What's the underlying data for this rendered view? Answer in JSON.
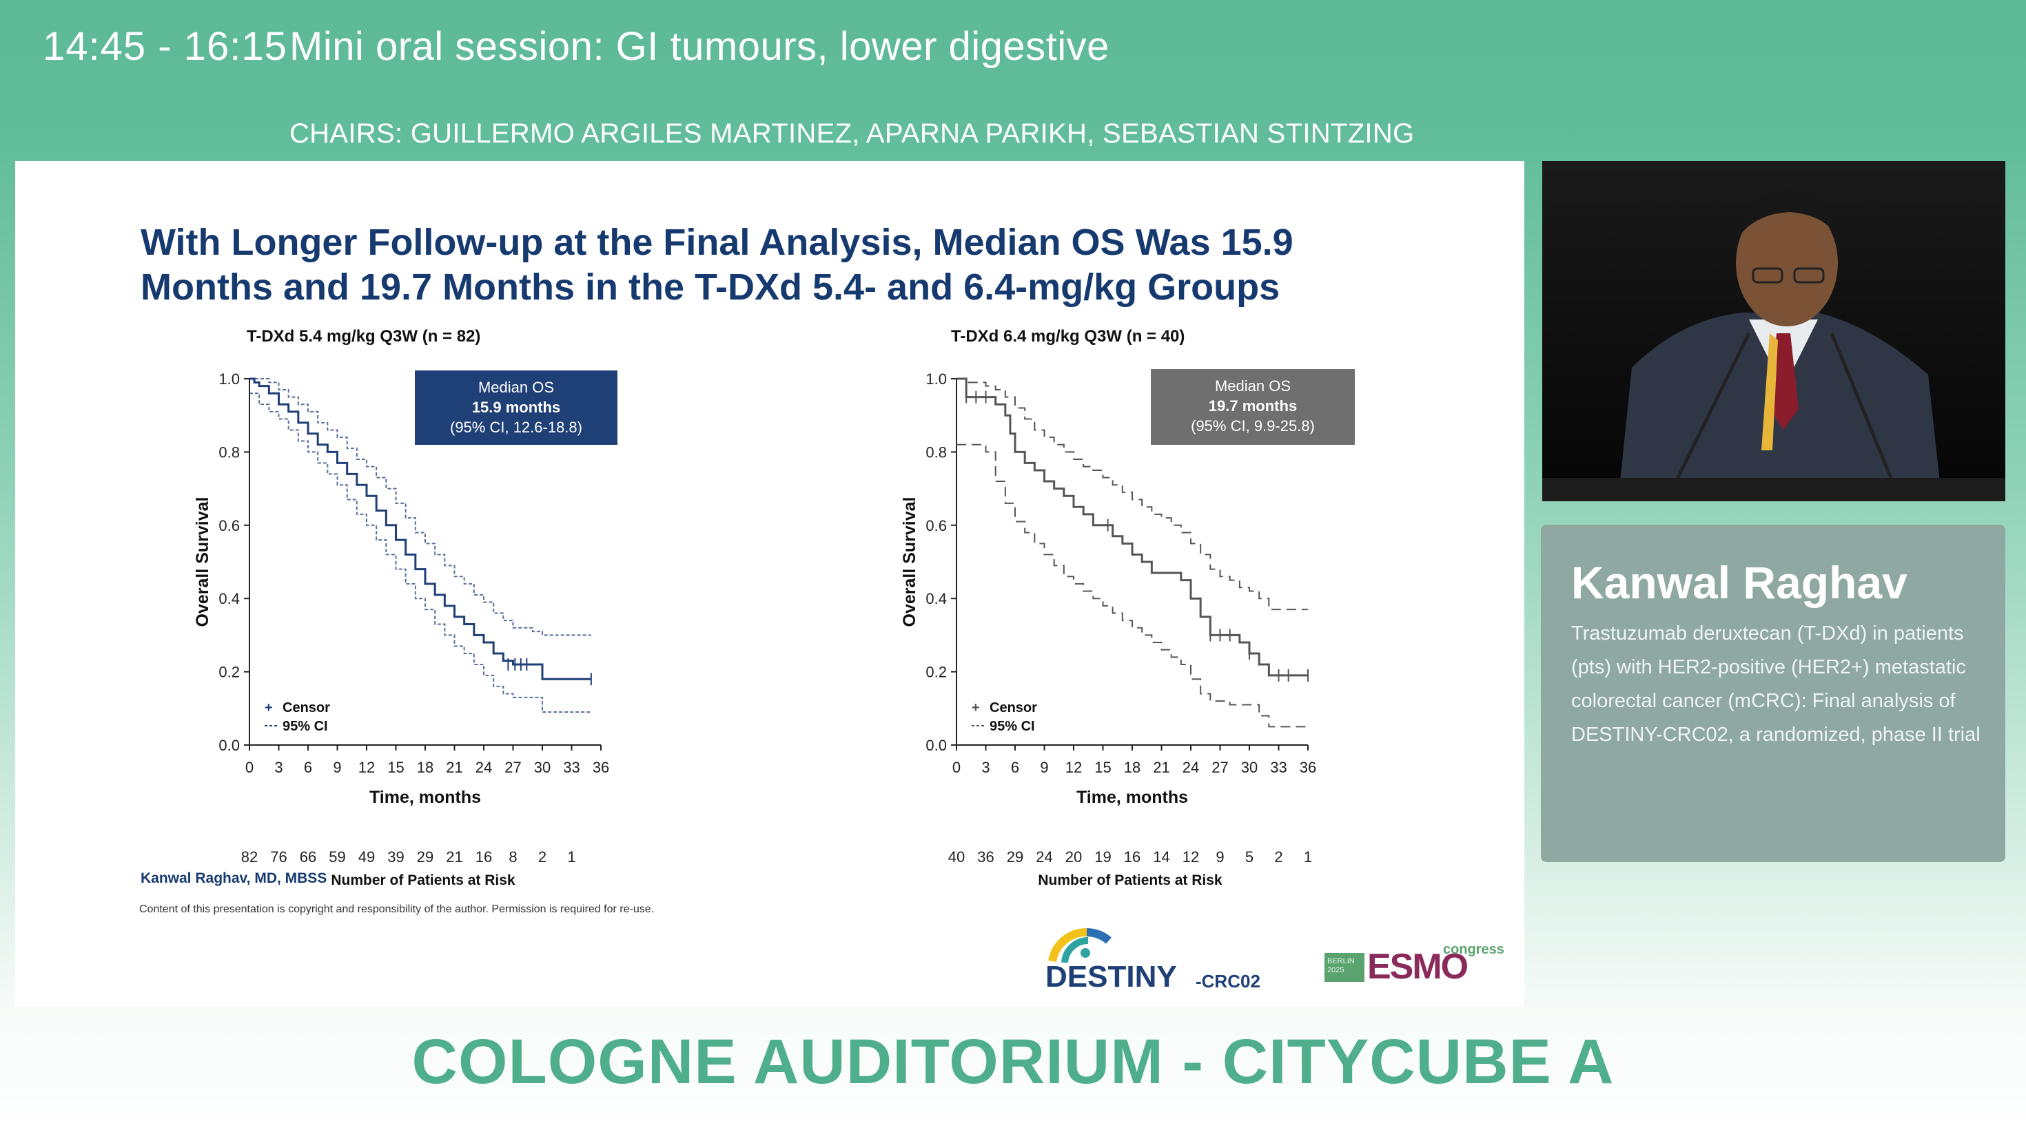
{
  "header": {
    "time": "14:45 - 16:15",
    "session_title": "Mini oral session: GI tumours, lower digestive",
    "chairs": "CHAIRS: GUILLERMO ARGILES MARTINEZ, APARNA PARIKH, SEBASTIAN STINTZING"
  },
  "slide": {
    "title_line1": "With Longer Follow-up at the Final Analysis, Median OS Was 15.9",
    "title_line2": "Months and 19.7 Months in the T-DXd 5.4- and 6.4-mg/kg Groups",
    "author": "Kanwal Raghav, MD, MBSS",
    "copyright": "Content of this presentation is copyright and responsibility of the author. Permission is required for re-use.",
    "logo_destiny_main": "DESTINY",
    "logo_destiny_sub": "-CRC02",
    "logo_esmo_badge": "BERLIN 2025",
    "logo_esmo_word": "ESMO",
    "logo_esmo_congress": "congress"
  },
  "chart_data": [
    {
      "type": "line",
      "title": "T-DXd 5.4 mg/kg Q3W (n = 82)",
      "xlabel": "Time, months",
      "ylabel": "Overall Survival",
      "xlim": [
        0,
        36
      ],
      "ylim": [
        0.0,
        1.0
      ],
      "xticks": [
        "0",
        "3",
        "6",
        "9",
        "12",
        "15",
        "18",
        "21",
        "24",
        "27",
        "30",
        "33",
        "36"
      ],
      "yticks": [
        "0.0",
        "0.2",
        "0.4",
        "0.6",
        "0.8",
        "1.0"
      ],
      "color": "#1f3f77",
      "legend": {
        "censor": "Censor",
        "ci": "95% CI"
      },
      "median_box": {
        "line1": "Median OS",
        "line2": "15.9 months",
        "line3": "(95% CI, 12.6-18.8)",
        "color": "#1f3f77"
      },
      "at_risk_label": "Number of Patients at Risk",
      "at_risk": [
        "82",
        "76",
        "66",
        "59",
        "49",
        "39",
        "29",
        "21",
        "16",
        "8",
        "2",
        "1"
      ],
      "series": [
        {
          "name": "",
          "style": "solid",
          "x": [
            0,
            0.5,
            1,
            2,
            3,
            4,
            5,
            6,
            7,
            8,
            9,
            10,
            11,
            12,
            13,
            14,
            15,
            16,
            17,
            18,
            19,
            20,
            21,
            22,
            23,
            24,
            25,
            26,
            27,
            28,
            29,
            30,
            31,
            32,
            33,
            34,
            35
          ],
          "y": [
            1.0,
            0.99,
            0.98,
            0.96,
            0.93,
            0.91,
            0.88,
            0.85,
            0.82,
            0.8,
            0.77,
            0.74,
            0.71,
            0.68,
            0.64,
            0.6,
            0.56,
            0.52,
            0.48,
            0.44,
            0.41,
            0.38,
            0.35,
            0.33,
            0.3,
            0.28,
            0.25,
            0.23,
            0.22,
            0.22,
            0.22,
            0.18,
            0.18,
            0.18,
            0.18,
            0.18,
            0.18
          ]
        },
        {
          "name": "95% CI",
          "style": "dashed",
          "x": [
            0,
            1,
            2,
            3,
            4,
            5,
            6,
            7,
            8,
            9,
            10,
            11,
            12,
            13,
            14,
            15,
            16,
            17,
            18,
            19,
            20,
            21,
            22,
            23,
            24,
            25,
            26,
            27,
            28,
            29,
            30,
            31,
            32,
            33,
            34,
            35
          ],
          "y": [
            1.0,
            1.0,
            0.99,
            0.97,
            0.95,
            0.93,
            0.91,
            0.88,
            0.86,
            0.84,
            0.81,
            0.78,
            0.76,
            0.73,
            0.7,
            0.66,
            0.62,
            0.58,
            0.55,
            0.52,
            0.49,
            0.46,
            0.44,
            0.41,
            0.39,
            0.36,
            0.34,
            0.32,
            0.32,
            0.31,
            0.3,
            0.3,
            0.3,
            0.3,
            0.3,
            0.3
          ]
        },
        {
          "name": "95% CI",
          "style": "dashed",
          "x": [
            0,
            1,
            2,
            3,
            4,
            5,
            6,
            7,
            8,
            9,
            10,
            11,
            12,
            13,
            14,
            15,
            16,
            17,
            18,
            19,
            20,
            21,
            22,
            23,
            24,
            25,
            26,
            27,
            28,
            29,
            30,
            31,
            32,
            33,
            34,
            35
          ],
          "y": [
            0.96,
            0.93,
            0.91,
            0.89,
            0.86,
            0.83,
            0.8,
            0.77,
            0.74,
            0.71,
            0.67,
            0.63,
            0.6,
            0.56,
            0.52,
            0.48,
            0.44,
            0.4,
            0.37,
            0.33,
            0.3,
            0.27,
            0.25,
            0.22,
            0.19,
            0.16,
            0.14,
            0.13,
            0.13,
            0.13,
            0.09,
            0.09,
            0.09,
            0.09,
            0.09,
            0.09
          ]
        }
      ],
      "censor_points": [
        [
          26.5,
          0.22
        ],
        [
          27.2,
          0.22
        ],
        [
          27.8,
          0.22
        ],
        [
          28.4,
          0.22
        ],
        [
          35,
          0.18
        ]
      ]
    },
    {
      "type": "line",
      "title": "T-DXd 6.4 mg/kg Q3W (n = 40)",
      "xlabel": "Time, months",
      "ylabel": "Overall Survival",
      "xlim": [
        0,
        36
      ],
      "ylim": [
        0.0,
        1.0
      ],
      "xticks": [
        "0",
        "3",
        "6",
        "9",
        "12",
        "15",
        "18",
        "21",
        "24",
        "27",
        "30",
        "33",
        "36"
      ],
      "yticks": [
        "0.0",
        "0.2",
        "0.4",
        "0.6",
        "0.8",
        "1.0"
      ],
      "color": "#555555",
      "legend": {
        "censor": "Censor",
        "ci": "95% CI"
      },
      "median_box": {
        "line1": "Median OS",
        "line2": "19.7 months",
        "line3": "(95% CI, 9.9-25.8)",
        "color": "#6f6f6f"
      },
      "at_risk_label": "Number of Patients at Risk",
      "at_risk": [
        "40",
        "36",
        "29",
        "24",
        "20",
        "19",
        "16",
        "14",
        "12",
        "9",
        "5",
        "2",
        "1"
      ],
      "series": [
        {
          "name": "",
          "style": "solid",
          "x": [
            0,
            1,
            2,
            3,
            4,
            5,
            5.5,
            6,
            7,
            8,
            9,
            10,
            11,
            12,
            13,
            14,
            15,
            16,
            17,
            18,
            19,
            20,
            21,
            22,
            23,
            24,
            25,
            26,
            27,
            28,
            29,
            30,
            31,
            32,
            33,
            34,
            36
          ],
          "y": [
            1.0,
            0.95,
            0.95,
            0.95,
            0.93,
            0.9,
            0.85,
            0.8,
            0.77,
            0.75,
            0.72,
            0.7,
            0.68,
            0.65,
            0.63,
            0.6,
            0.6,
            0.57,
            0.55,
            0.52,
            0.5,
            0.47,
            0.47,
            0.47,
            0.45,
            0.4,
            0.35,
            0.3,
            0.3,
            0.3,
            0.28,
            0.25,
            0.22,
            0.19,
            0.19,
            0.19,
            0.19
          ]
        },
        {
          "name": "95% CI",
          "style": "dashed",
          "x": [
            0,
            1,
            2,
            3,
            4,
            5,
            6,
            7,
            8,
            9,
            10,
            11,
            12,
            13,
            14,
            15,
            16,
            17,
            18,
            19,
            20,
            21,
            22,
            23,
            24,
            25,
            26,
            27,
            28,
            29,
            30,
            31,
            32,
            33,
            34,
            35,
            36
          ],
          "y": [
            1.0,
            0.99,
            0.99,
            0.98,
            0.97,
            0.95,
            0.92,
            0.89,
            0.86,
            0.84,
            0.82,
            0.8,
            0.78,
            0.76,
            0.75,
            0.73,
            0.71,
            0.69,
            0.67,
            0.65,
            0.63,
            0.62,
            0.6,
            0.58,
            0.55,
            0.52,
            0.48,
            0.46,
            0.45,
            0.43,
            0.42,
            0.4,
            0.37,
            0.37,
            0.37,
            0.37,
            0.37
          ]
        },
        {
          "name": "95% CI",
          "style": "dashed",
          "x": [
            0,
            1,
            2,
            3,
            4,
            5,
            6,
            7,
            8,
            9,
            10,
            11,
            12,
            13,
            14,
            15,
            16,
            17,
            18,
            19,
            20,
            21,
            22,
            23,
            24,
            25,
            26,
            27,
            28,
            29,
            30,
            31,
            32,
            33,
            34,
            35,
            36
          ],
          "y": [
            0.82,
            0.82,
            0.82,
            0.8,
            0.72,
            0.66,
            0.61,
            0.58,
            0.55,
            0.52,
            0.49,
            0.46,
            0.44,
            0.42,
            0.4,
            0.38,
            0.36,
            0.34,
            0.32,
            0.3,
            0.28,
            0.26,
            0.24,
            0.22,
            0.18,
            0.14,
            0.12,
            0.12,
            0.11,
            0.11,
            0.11,
            0.08,
            0.05,
            0.05,
            0.05,
            0.05,
            0.05
          ]
        }
      ],
      "censor_points": [
        [
          1,
          0.95
        ],
        [
          2,
          0.95
        ],
        [
          3,
          0.95
        ],
        [
          15.5,
          0.6
        ],
        [
          26,
          0.3
        ],
        [
          27,
          0.3
        ],
        [
          28,
          0.3
        ],
        [
          30,
          0.25
        ],
        [
          33,
          0.19
        ],
        [
          34,
          0.19
        ],
        [
          36,
          0.19
        ]
      ]
    }
  ],
  "speaker": {
    "name": "Kanwal Raghav",
    "description": "Trastuzumab deruxtecan (T-DXd) in patients (pts) with HER2-positive (HER2+) metastatic colorectal cancer (mCRC): Final analysis of DESTINY-CRC02, a randomized, phase II trial"
  },
  "venue": "COLOGNE AUDITORIUM - CITYCUBE A"
}
